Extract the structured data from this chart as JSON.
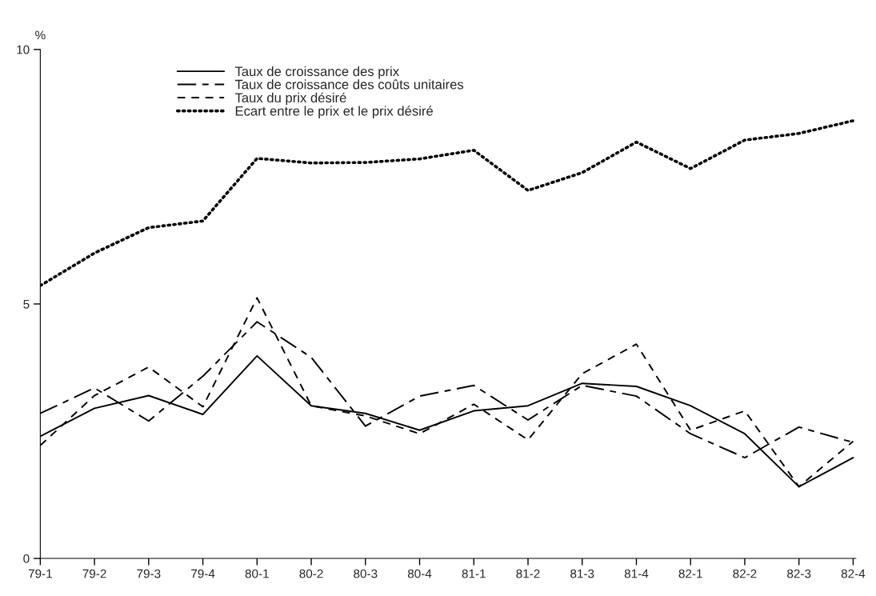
{
  "chart_data": {
    "type": "line",
    "ylabel": "%",
    "categories": [
      "79-1",
      "79-2",
      "79-3",
      "79-4",
      "80-1",
      "80-2",
      "80-3",
      "80-4",
      "81-1",
      "81-2",
      "81-3",
      "81-4",
      "82-1",
      "82-2",
      "82-3",
      "82-4"
    ],
    "series": [
      {
        "name": "Taux de croissance des prix",
        "color": "#000000",
        "line_style": "solid",
        "values": [
          2.4,
          2.95,
          3.2,
          2.83,
          3.98,
          3.0,
          2.85,
          2.52,
          2.9,
          3.0,
          3.44,
          3.38,
          3.0,
          2.45,
          1.41,
          1.98
        ]
      },
      {
        "name": "Taux de croissance des coûts unitaires",
        "color": "#000000",
        "line_style": "dashed",
        "values": [
          2.85,
          3.35,
          2.7,
          3.58,
          4.65,
          3.95,
          2.6,
          3.19,
          3.4,
          2.72,
          3.4,
          3.19,
          2.45,
          1.98,
          2.58,
          2.28
        ]
      },
      {
        "name": "Taux du prix désiré",
        "color": "#000000",
        "line_style": "dashed",
        "values": [
          2.22,
          3.2,
          3.76,
          2.98,
          5.12,
          3.0,
          2.8,
          2.45,
          3.03,
          2.33,
          3.63,
          4.21,
          2.52,
          2.9,
          1.41,
          2.3
        ]
      },
      {
        "name": "Ecart entre le prix et le prix désiré",
        "color": "#000000",
        "line_style": "dotted",
        "values": [
          5.36,
          6.0,
          6.5,
          6.63,
          7.86,
          7.77,
          7.78,
          7.85,
          8.02,
          7.23,
          7.58,
          8.18,
          7.66,
          8.22,
          8.35,
          8.6
        ]
      }
    ],
    "ylim": [
      0,
      10
    ],
    "yticks": [
      0,
      5,
      10
    ],
    "grid": false,
    "legend": "top left",
    "marker": "none"
  }
}
